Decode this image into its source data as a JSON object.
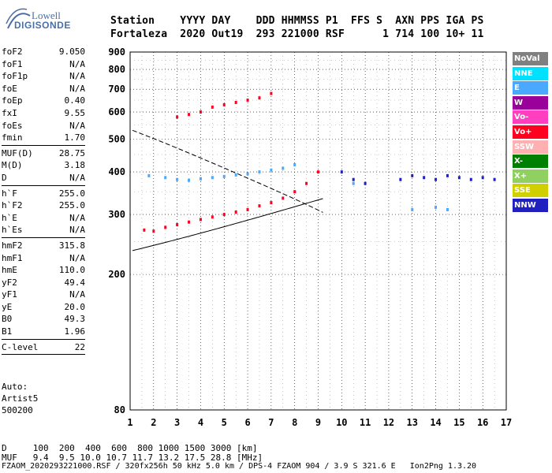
{
  "logo": {
    "line1": "Lowell",
    "line2": "DIGISONDE"
  },
  "header": {
    "line1": "Station    YYYY DAY    DDD HHMMSS P1  FFS S  AXN PPS IGA PS",
    "line2": "Fortaleza  2020 Out19  293 221000 RSF      1 714 100 10+ 11"
  },
  "sidebar": {
    "groups": [
      [
        {
          "label": "foF2",
          "value": "9.050"
        },
        {
          "label": "foF1",
          "value": "N/A"
        },
        {
          "label": "foF1p",
          "value": "N/A"
        },
        {
          "label": "foE",
          "value": "N/A"
        },
        {
          "label": "foEp",
          "value": "0.40"
        },
        {
          "label": "fxI",
          "value": "9.55"
        },
        {
          "label": "foEs",
          "value": "N/A"
        },
        {
          "label": "fmin",
          "value": "1.70"
        }
      ],
      [
        {
          "label": "MUF(D)",
          "value": "28.75"
        },
        {
          "label": "M(D)",
          "value": "3.18"
        },
        {
          "label": "D",
          "value": "N/A"
        }
      ],
      [
        {
          "label": "h`F",
          "value": "255.0"
        },
        {
          "label": "h`F2",
          "value": "255.0"
        },
        {
          "label": "h`E",
          "value": "N/A"
        },
        {
          "label": "h`Es",
          "value": "N/A"
        }
      ],
      [
        {
          "label": "hmF2",
          "value": "315.8"
        },
        {
          "label": "hmF1",
          "value": "N/A"
        },
        {
          "label": "hmE",
          "value": "110.0"
        },
        {
          "label": "yF2",
          "value": "49.4"
        },
        {
          "label": "yF1",
          "value": "N/A"
        },
        {
          "label": "yE",
          "value": "20.0"
        },
        {
          "label": "B0",
          "value": "49.3"
        },
        {
          "label": "B1",
          "value": "1.96"
        }
      ],
      [
        {
          "label": "C-level",
          "value": "22"
        }
      ]
    ]
  },
  "auto": {
    "line1": "Auto:",
    "line2": "Artist5",
    "line3": "500200"
  },
  "footer": {
    "d_row": "D     100  200  400  600  800 1000 1500 3000 [km]",
    "muf_row": "MUF   9.4  9.5 10.0 10.7 11.7 13.2 17.5 28.8 [MHz]",
    "file_row": "FZAOM_2020293221000.RSF / 320fx256h 50 kHz 5.0 km / DPS-4 FZAOM 904 / 3.9 S 321.6 E   Ion2Png 1.3.20"
  },
  "legend": [
    {
      "label": "NoVal",
      "bg": "#808080",
      "fg": "#ffffff"
    },
    {
      "label": "NNE",
      "bg": "#00e0ff",
      "fg": "#ffffff"
    },
    {
      "label": "E",
      "bg": "#4aa8ff",
      "fg": "#ffffff"
    },
    {
      "label": "W",
      "bg": "#9a009a",
      "fg": "#ffffff"
    },
    {
      "label": "Vo-",
      "bg": "#ff3fbf",
      "fg": "#ffffff"
    },
    {
      "label": "Vo+",
      "bg": "#ff0020",
      "fg": "#ffffff"
    },
    {
      "label": "SSW",
      "bg": "#ffb0b0",
      "fg": "#ffffff"
    },
    {
      "label": "X-",
      "bg": "#008000",
      "fg": "#ffffff"
    },
    {
      "label": "X+",
      "bg": "#90d060",
      "fg": "#ffffff"
    },
    {
      "label": "SSE",
      "bg": "#d0d000",
      "fg": "#ffffff"
    },
    {
      "label": "NNW",
      "bg": "#2020c0",
      "fg": "#ffffff"
    }
  ],
  "chart_data": {
    "type": "scatter",
    "xlim": [
      1,
      17
    ],
    "ylim": [
      80,
      900
    ],
    "x_ticks": [
      "1",
      "2",
      "3",
      "4",
      "5",
      "6",
      "7",
      "8",
      "9",
      "10",
      "11",
      "12",
      "13",
      "14",
      "15",
      "16",
      "17"
    ],
    "y_ticks": [
      "80",
      "200",
      "300",
      "400",
      "500",
      "600",
      "700",
      "800",
      "900"
    ],
    "y_scale": "log",
    "grid": true,
    "series": [
      {
        "name": "Vo+",
        "color": "#ff0020",
        "points": [
          [
            1.6,
            270
          ],
          [
            2.0,
            268
          ],
          [
            2.5,
            275
          ],
          [
            3.0,
            280
          ],
          [
            3.5,
            285
          ],
          [
            4.0,
            290
          ],
          [
            4.5,
            295
          ],
          [
            5.0,
            300
          ],
          [
            5.5,
            305
          ],
          [
            6.0,
            310
          ],
          [
            6.5,
            318
          ],
          [
            7.0,
            325
          ],
          [
            7.5,
            335
          ],
          [
            8.0,
            350
          ],
          [
            8.5,
            370
          ],
          [
            9.0,
            400
          ],
          [
            3.0,
            580
          ],
          [
            3.5,
            590
          ],
          [
            4.0,
            600
          ],
          [
            4.5,
            620
          ],
          [
            5.0,
            630
          ],
          [
            5.5,
            640
          ],
          [
            6.0,
            650
          ],
          [
            6.5,
            660
          ],
          [
            7.0,
            680
          ]
        ]
      },
      {
        "name": "E",
        "color": "#4aa8ff",
        "points": [
          [
            1.8,
            390
          ],
          [
            2.5,
            385
          ],
          [
            3.0,
            380
          ],
          [
            3.5,
            378
          ],
          [
            4.0,
            382
          ],
          [
            4.5,
            385
          ],
          [
            5.0,
            388
          ],
          [
            5.5,
            392
          ],
          [
            6.0,
            395
          ],
          [
            6.5,
            400
          ],
          [
            7.0,
            405
          ],
          [
            7.5,
            410
          ],
          [
            8.0,
            420
          ],
          [
            10.5,
            370
          ],
          [
            13.0,
            310
          ],
          [
            14.0,
            315
          ],
          [
            14.5,
            310
          ]
        ]
      },
      {
        "name": "NNW",
        "color": "#2020c0",
        "points": [
          [
            10.0,
            400
          ],
          [
            10.5,
            380
          ],
          [
            11.0,
            370
          ],
          [
            12.5,
            380
          ],
          [
            13.0,
            390
          ],
          [
            13.5,
            385
          ],
          [
            14.0,
            380
          ],
          [
            14.5,
            390
          ],
          [
            15.0,
            385
          ],
          [
            15.5,
            380
          ],
          [
            16.0,
            385
          ],
          [
            16.5,
            380
          ]
        ]
      }
    ]
  }
}
